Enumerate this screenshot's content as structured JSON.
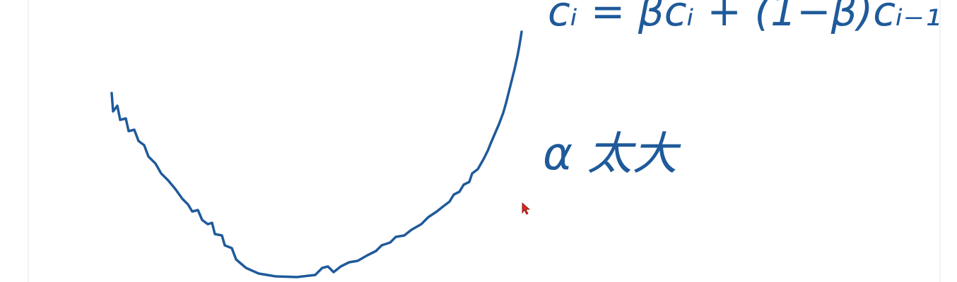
{
  "formula": "cᵢ = βcᵢ + (1−β)cᵢ₋₁",
  "note": "α 太大"
}
